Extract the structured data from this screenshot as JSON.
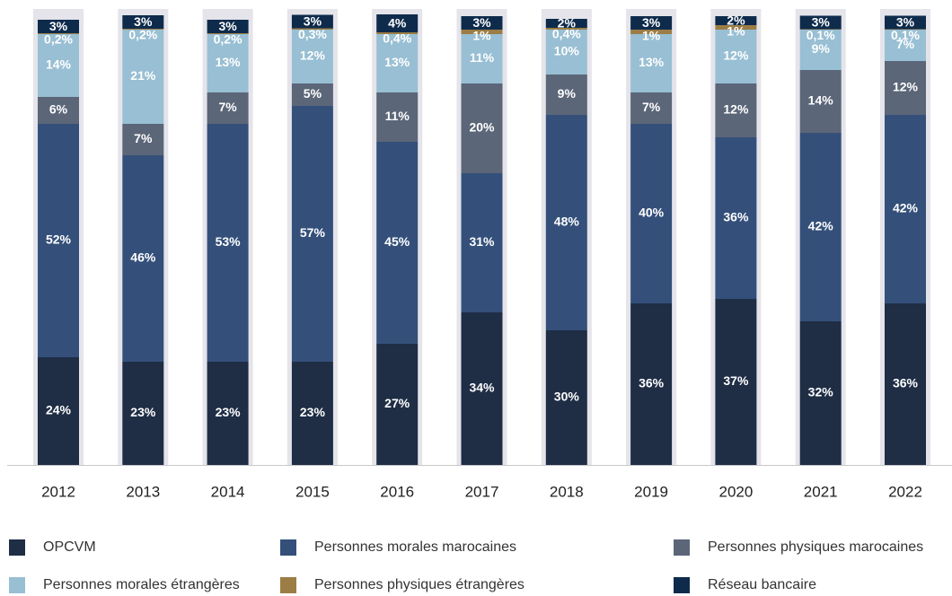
{
  "chart_data": {
    "type": "stacked_bar",
    "categories": [
      "2012",
      "2013",
      "2014",
      "2015",
      "2016",
      "2017",
      "2018",
      "2019",
      "2020",
      "2021",
      "2022"
    ],
    "ylim": [
      0,
      100
    ],
    "series": [
      {
        "name": "OPCVM",
        "color": "#1f2d45",
        "values": [
          24,
          23,
          23,
          23,
          27,
          34,
          30,
          36,
          37,
          32,
          36
        ],
        "value_labels": [
          "24%",
          "23%",
          "23%",
          "23%",
          "27%",
          "34%",
          "30%",
          "36%",
          "37%",
          "32%",
          "36%"
        ]
      },
      {
        "name": "Personnes morales marocaines",
        "color": "#34507a",
        "values": [
          52,
          46,
          53,
          57,
          45,
          31,
          48,
          40,
          36,
          42,
          42
        ],
        "value_labels": [
          "52%",
          "46%",
          "53%",
          "57%",
          "45%",
          "31%",
          "48%",
          "40%",
          "36%",
          "42%",
          "42%"
        ]
      },
      {
        "name": "Personnes physiques marocaines",
        "color": "#5b6678",
        "values": [
          6,
          7,
          7,
          5,
          11,
          20,
          9,
          7,
          12,
          14,
          12
        ],
        "value_labels": [
          "6%",
          "7%",
          "7%",
          "5%",
          "11%",
          "20%",
          "9%",
          "7%",
          "12%",
          "14%",
          "12%"
        ]
      },
      {
        "name": "Personnes morales étrangères",
        "color": "#98bfd3",
        "values": [
          14,
          21,
          13,
          12,
          13,
          11,
          10,
          13,
          12,
          9,
          7
        ],
        "value_labels": [
          "14%",
          "21%",
          "13%",
          "12%",
          "13%",
          "11%",
          "10%",
          "13%",
          "12%",
          "9%",
          "7%"
        ]
      },
      {
        "name": "Personnes physiques étrangères",
        "color": "#9b7d45",
        "values": [
          0.2,
          0.2,
          0.2,
          0.3,
          0.4,
          1,
          0.4,
          1,
          1,
          0.1,
          0.1
        ],
        "value_labels": [
          "0,2%",
          "0,2%",
          "0,2%",
          "0,3%",
          "0,4%",
          "1%",
          "0,4%",
          "1%",
          "1%",
          "0,1%",
          "0,1%"
        ]
      },
      {
        "name": "Réseau bancaire",
        "color": "#0e2b4c",
        "values": [
          3,
          3,
          3,
          3,
          4,
          3,
          2,
          3,
          2,
          3,
          3
        ],
        "value_labels": [
          "3%",
          "3%",
          "3%",
          "3%",
          "4%",
          "3%",
          "2%",
          "3%",
          "2%",
          "3%",
          "3%"
        ]
      }
    ]
  }
}
